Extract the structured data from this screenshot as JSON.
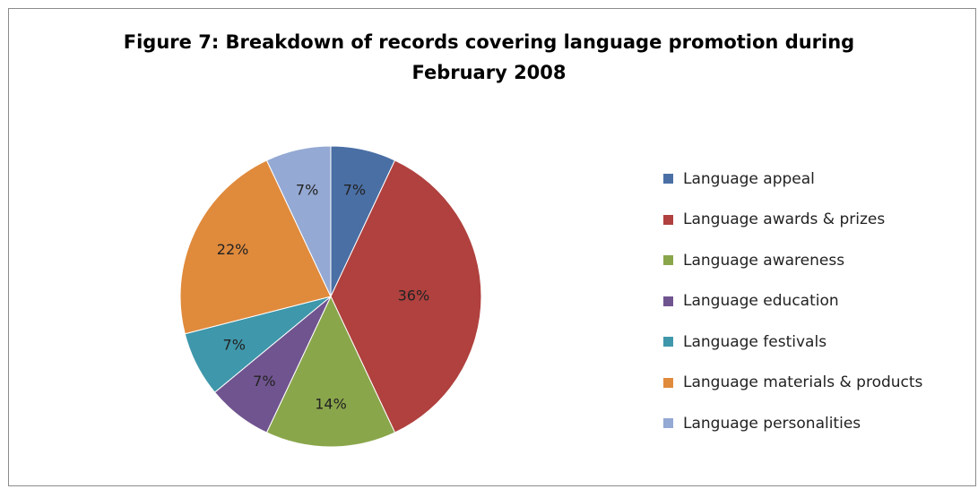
{
  "chart_data": {
    "type": "pie",
    "title_line1": "Figure 7: Breakdown of records covering language promotion during",
    "title_line2": "February 2008",
    "categories": [
      "Language appeal",
      "Language awards & prizes",
      "Language awareness",
      "Language education",
      "Language festivals",
      "Language materials & products",
      "Language personalities"
    ],
    "values": [
      7,
      36,
      14,
      7,
      7,
      22,
      7
    ],
    "labels": [
      "7%",
      "36%",
      "14%",
      "7%",
      "7%",
      "22%",
      "7%"
    ],
    "colors": [
      "#4a6fa5",
      "#b0413e",
      "#8aa64b",
      "#70548f",
      "#3f97ab",
      "#e08a3c",
      "#94a9d3"
    ],
    "legend_position": "right"
  }
}
